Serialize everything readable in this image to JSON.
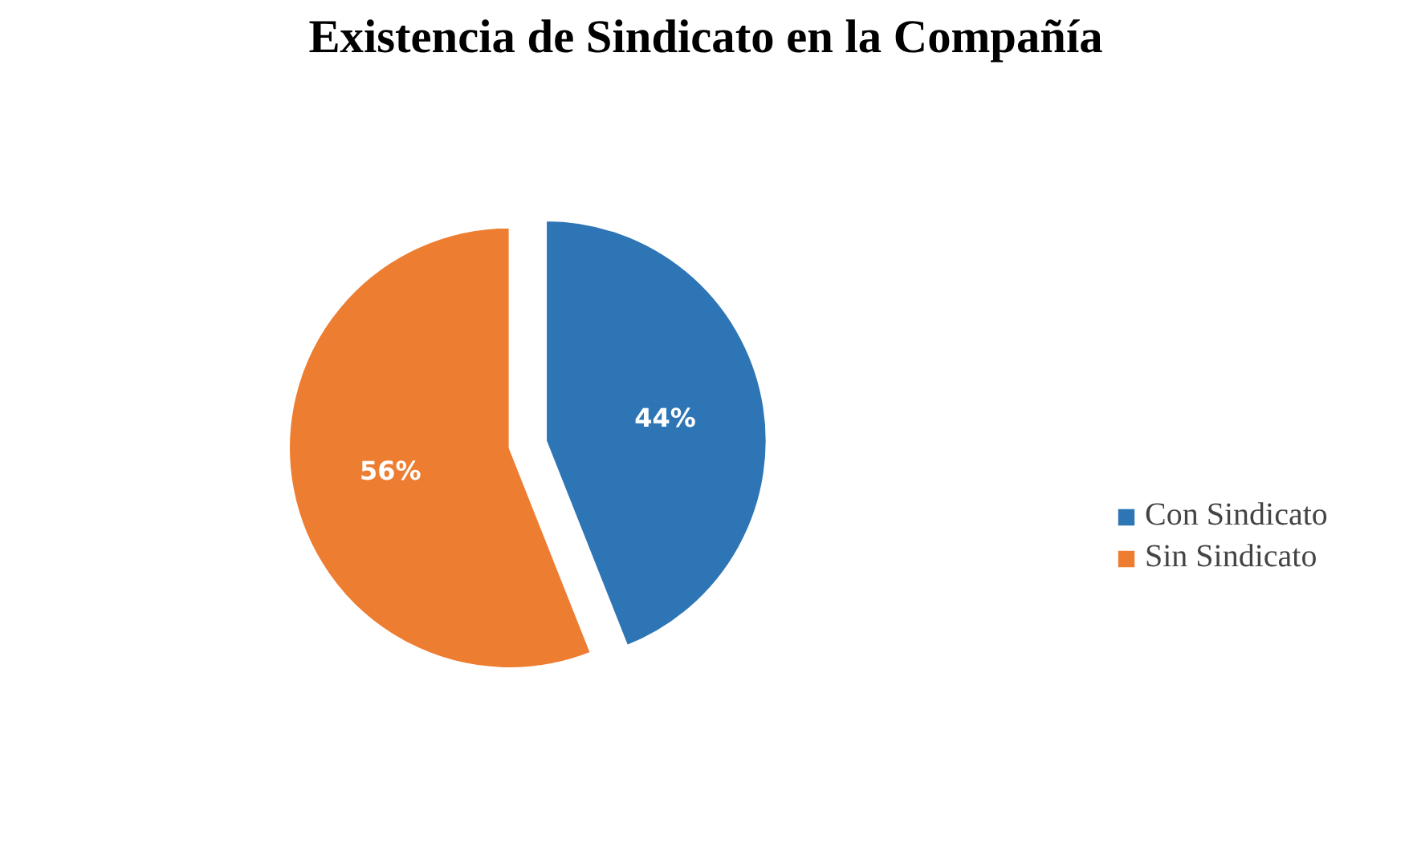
{
  "chart_data": {
    "type": "pie",
    "title": "Existencia de Sindicato en la Compañía",
    "categories": [
      "Con Sindicato",
      "Sin Sindicato"
    ],
    "values": [
      44,
      56
    ],
    "colors": [
      "#2e75b6",
      "#ed7d31"
    ],
    "value_labels": [
      "44%",
      "56%"
    ],
    "legend": "right"
  }
}
